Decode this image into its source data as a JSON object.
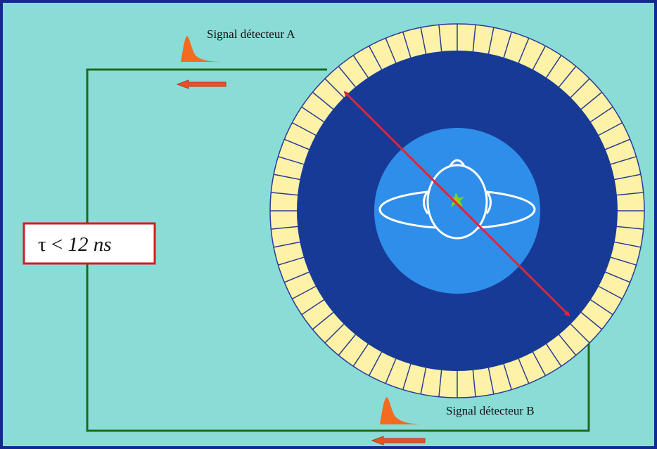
{
  "labels": {
    "detector_a": "Signal détecteur A",
    "detector_b": "Signal détecteur B"
  },
  "timing": {
    "symbol": "τ",
    "operator": "<",
    "value": "12 ns"
  },
  "scanner": {
    "detector_count": 64
  },
  "colors": {
    "background": "#8adcd7",
    "border": "#14288e",
    "wire": "#1d6a1d",
    "detector_fill": "#fdf2a8",
    "detector_stroke": "#2a3c94",
    "ring_dark": "#173a96",
    "field_light": "#2f8ee9",
    "line_of_response": "#d8283c",
    "pulse": "#f26b1e",
    "box_border": "#d21e1e",
    "arrow": "#e8502a"
  }
}
